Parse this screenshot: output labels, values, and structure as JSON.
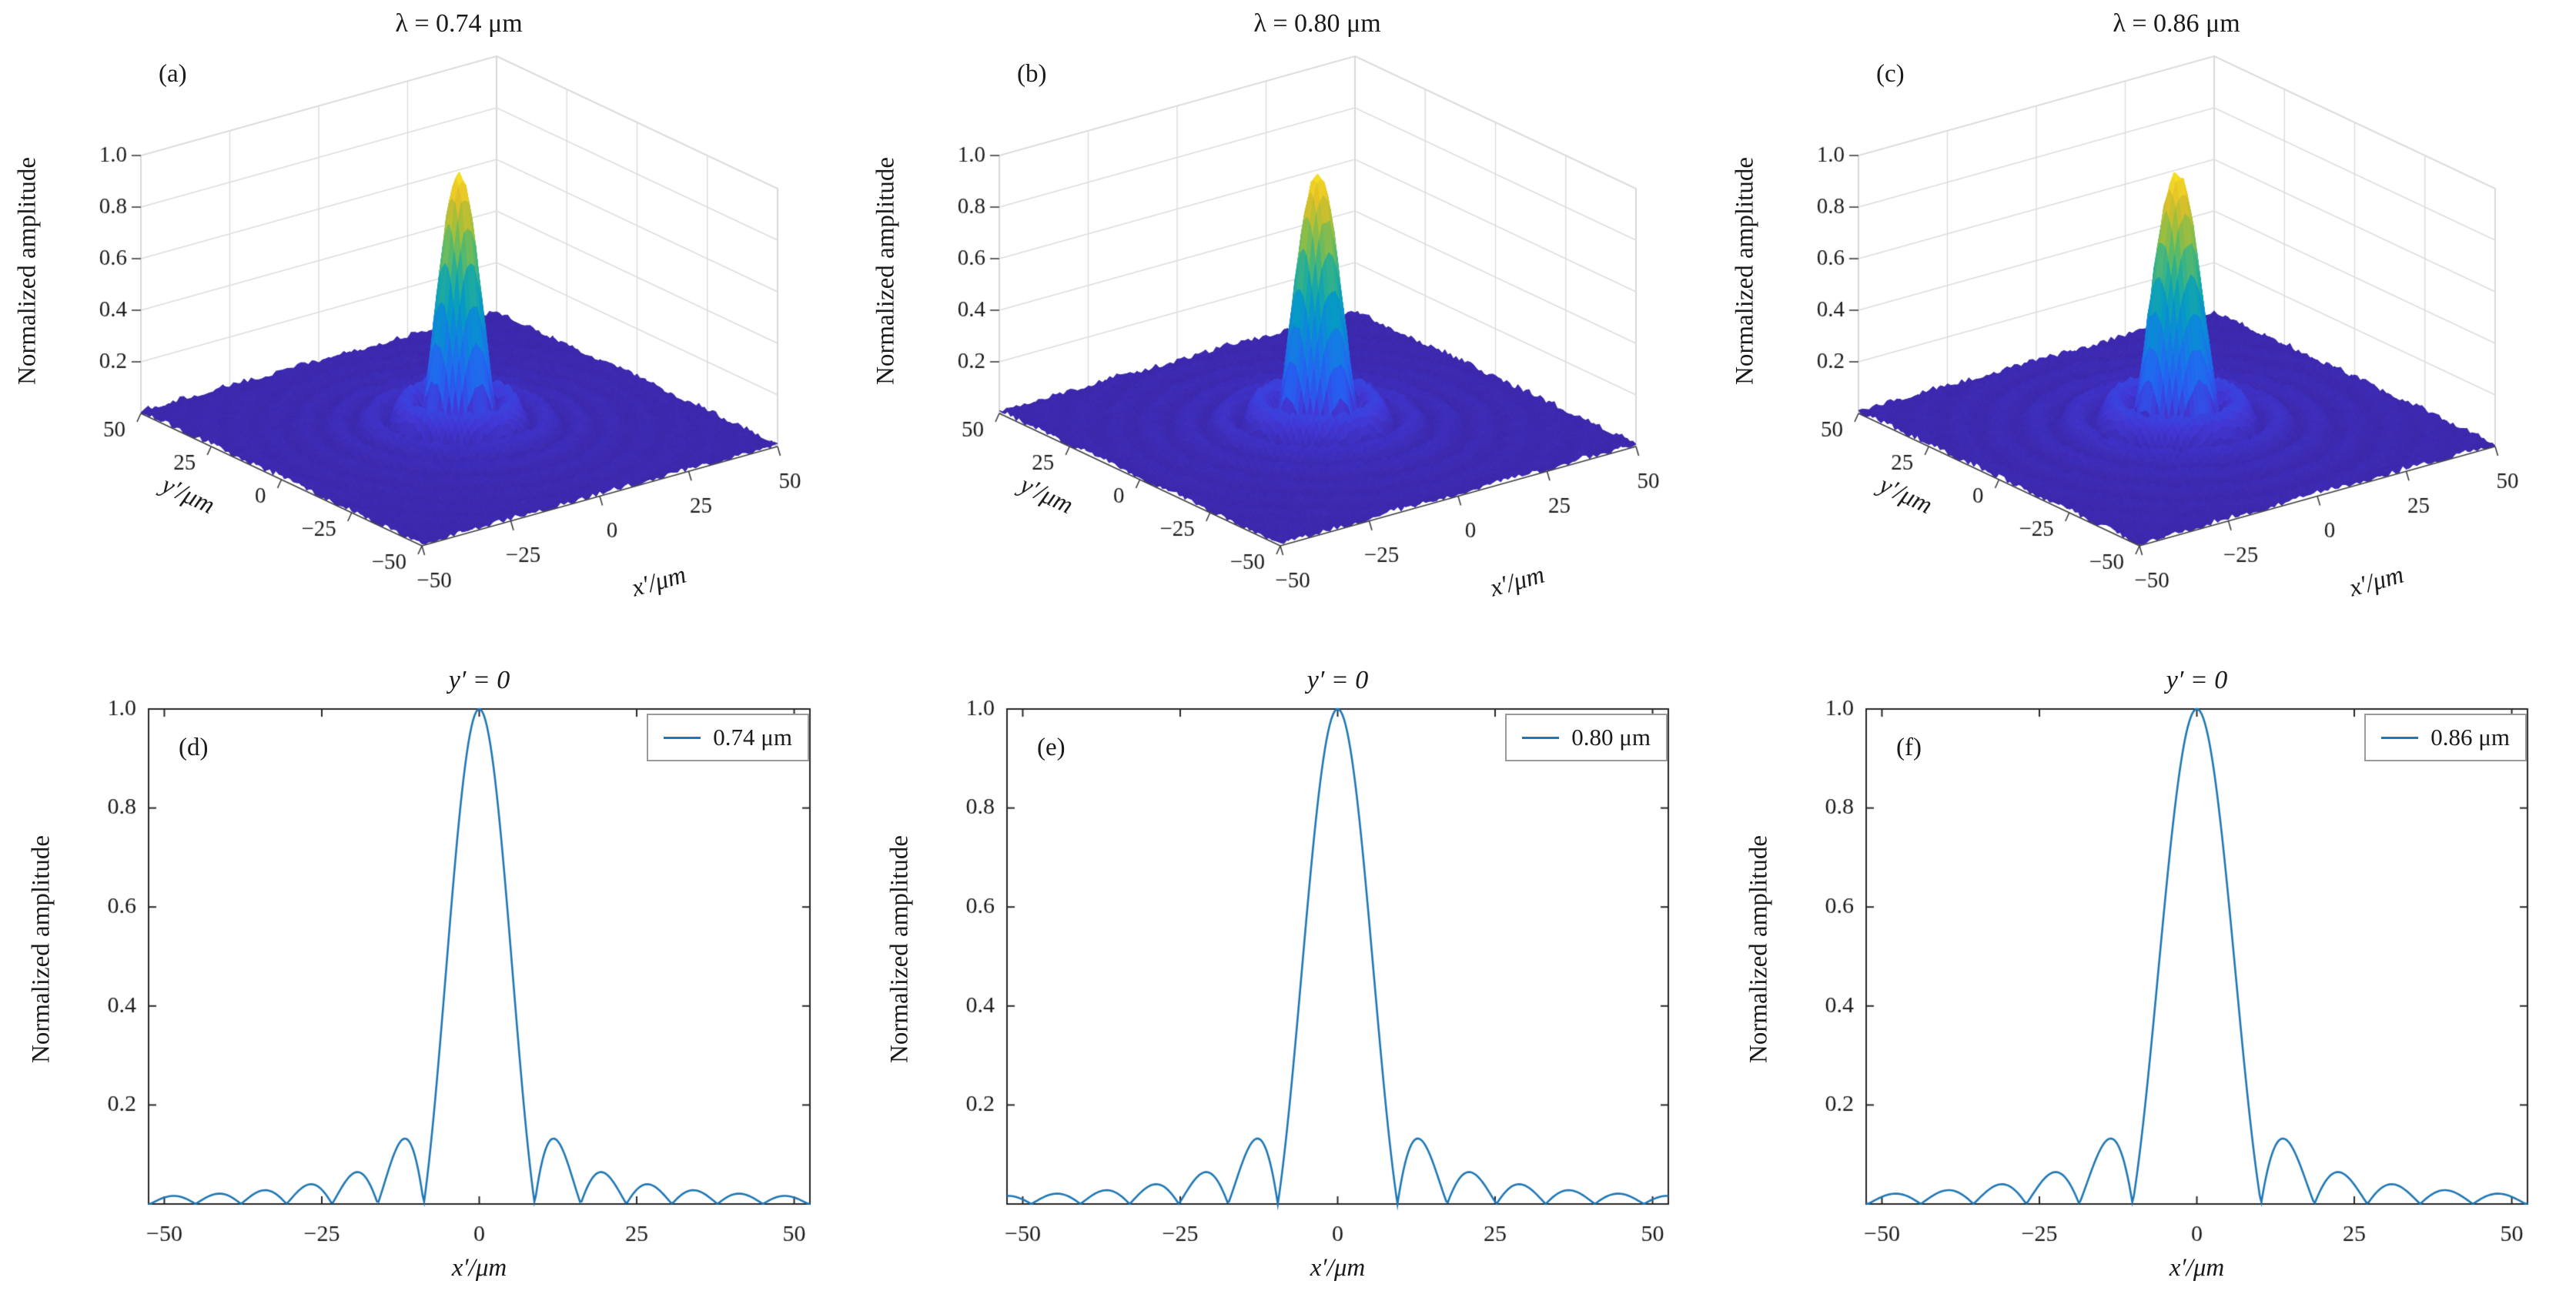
{
  "colors": {
    "line": "#1f77b4",
    "axis": "#262626",
    "grid": "#dcdcdc",
    "pane_edge": "#c9c9c9",
    "tick_text": "#1a1a1a",
    "legend_border": "#9a9a9a",
    "colormap": [
      "#3a26a8",
      "#4238d6",
      "#285cf0",
      "#1c71ec",
      "#0d88da",
      "#069cc2",
      "#22ad9b",
      "#5cba67",
      "#a3be3b",
      "#e4c027",
      "#f9e625"
    ]
  },
  "chart_data": [
    {
      "type": "surface",
      "panel_label": "(a)",
      "title": "λ = 0.74 μm",
      "wavelength_um": 0.74,
      "xlabel": "x′/μm",
      "ylabel": "y′/μm",
      "zlabel": "Normalized amplitude",
      "x_range": [
        -50,
        50
      ],
      "y_range": [
        -50,
        50
      ],
      "z_range": [
        0,
        1
      ],
      "x_ticks": [
        -50,
        -25,
        0,
        25,
        50
      ],
      "x_tick_labels": [
        "−50",
        "−25",
        "0",
        "25",
        "50"
      ],
      "y_ticks": [
        -50,
        -25,
        0,
        25,
        50
      ],
      "y_tick_labels": [
        "−50",
        "−25",
        "0",
        "25",
        "50"
      ],
      "z_ticks": [
        0.2,
        0.4,
        0.6,
        0.8,
        1.0
      ],
      "z_tick_labels": [
        "0.2",
        "0.4",
        "0.6",
        "0.8",
        "1.0"
      ],
      "function": "normalized Airy amplitude |2·J1(v)/v|, v = 3.8317·r/r1, r = √(x′²+y′²)",
      "first_zero_radius_um": 8.8,
      "peak": {
        "x": 0,
        "y": 0,
        "amplitude": 1.0
      },
      "ring_radii_um": [
        11.8,
        19.3,
        26.7,
        34.0,
        41.2,
        48.5
      ],
      "ring_amplitudes": [
        0.132,
        0.065,
        0.04,
        0.029,
        0.023,
        0.019
      ],
      "noise_amplitude": 0.012,
      "colormap_name": "parula (dark blue → cyan → green → yellow)"
    },
    {
      "type": "surface",
      "panel_label": "(b)",
      "title": "λ = 0.80 μm",
      "wavelength_um": 0.8,
      "xlabel": "x′/μm",
      "ylabel": "y′/μm",
      "zlabel": "Normalized amplitude",
      "x_range": [
        -50,
        50
      ],
      "y_range": [
        -50,
        50
      ],
      "z_range": [
        0,
        1
      ],
      "x_ticks": [
        -50,
        -25,
        0,
        25,
        50
      ],
      "x_tick_labels": [
        "−50",
        "−25",
        "0",
        "25",
        "50"
      ],
      "y_ticks": [
        -50,
        -25,
        0,
        25,
        50
      ],
      "y_tick_labels": [
        "−50",
        "−25",
        "0",
        "25",
        "50"
      ],
      "z_ticks": [
        0.2,
        0.4,
        0.6,
        0.8,
        1.0
      ],
      "z_tick_labels": [
        "0.2",
        "0.4",
        "0.6",
        "0.8",
        "1.0"
      ],
      "function": "normalized Airy amplitude |2·J1(v)/v|, v = 3.8317·r/r1, r = √(x′²+y′²)",
      "first_zero_radius_um": 9.5,
      "peak": {
        "x": 0,
        "y": 0,
        "amplitude": 1.0
      },
      "ring_radii_um": [
        12.7,
        20.9,
        28.8,
        36.7,
        44.5
      ],
      "ring_amplitudes": [
        0.132,
        0.065,
        0.04,
        0.029,
        0.023
      ],
      "noise_amplitude": 0.012,
      "colormap_name": "parula (dark blue → cyan → green → yellow)"
    },
    {
      "type": "surface",
      "panel_label": "(c)",
      "title": "λ = 0.86 μm",
      "wavelength_um": 0.86,
      "xlabel": "x′/μm",
      "ylabel": "y′/μm",
      "zlabel": "Normalized amplitude",
      "x_range": [
        -50,
        50
      ],
      "y_range": [
        -50,
        50
      ],
      "z_range": [
        0,
        1
      ],
      "x_ticks": [
        -50,
        -25,
        0,
        25,
        50
      ],
      "x_tick_labels": [
        "−50",
        "−25",
        "0",
        "25",
        "50"
      ],
      "y_ticks": [
        -50,
        -25,
        0,
        25,
        50
      ],
      "y_tick_labels": [
        "−50",
        "−25",
        "0",
        "25",
        "50"
      ],
      "z_ticks": [
        0.2,
        0.4,
        0.6,
        0.8,
        1.0
      ],
      "z_tick_labels": [
        "0.2",
        "0.4",
        "0.6",
        "0.8",
        "1.0"
      ],
      "function": "normalized Airy amplitude |2·J1(v)/v|, v = 3.8317·r/r1, r = √(x′²+y′²)",
      "first_zero_radius_um": 10.2,
      "peak": {
        "x": 0,
        "y": 0,
        "amplitude": 1.0
      },
      "ring_radii_um": [
        13.7,
        22.4,
        30.9,
        39.4,
        47.8
      ],
      "ring_amplitudes": [
        0.132,
        0.065,
        0.04,
        0.029,
        0.023
      ],
      "noise_amplitude": 0.012,
      "colormap_name": "parula (dark blue → cyan → green → yellow)"
    },
    {
      "type": "line",
      "panel_label": "(d)",
      "title": "y′ = 0",
      "xlabel": "x′/μm",
      "ylabel": "Normalized amplitude",
      "xlim": [
        -52.5,
        52.5
      ],
      "ylim": [
        0,
        1.0
      ],
      "x_ticks": [
        -50,
        -25,
        0,
        25,
        50
      ],
      "x_tick_labels": [
        "−50",
        "−25",
        "0",
        "25",
        "50"
      ],
      "y_ticks": [
        0.2,
        0.4,
        0.6,
        0.8,
        1.0
      ],
      "y_tick_labels": [
        "0.2",
        "0.4",
        "0.6",
        "0.8",
        "1.0"
      ],
      "legend": [
        {
          "label": "0.74 μm",
          "color": "#1f77b4"
        }
      ],
      "series": [
        {
          "name": "0.74 μm",
          "function": "|2·J1(v)/v|, v = 3.8317·x′/r1",
          "first_zero_um": 8.8,
          "peak": [
            0,
            1.0
          ],
          "zeros_um": [
            8.8,
            16.1,
            23.4,
            30.6,
            37.8,
            45.1
          ],
          "sidelobe_peaks": [
            [
              11.8,
              0.132
            ],
            [
              19.3,
              0.065
            ],
            [
              26.7,
              0.04
            ],
            [
              34.0,
              0.029
            ],
            [
              41.2,
              0.023
            ],
            [
              48.5,
              0.019
            ]
          ],
          "symmetry": "even about x′ = 0"
        }
      ]
    },
    {
      "type": "line",
      "panel_label": "(e)",
      "title": "y′ = 0",
      "xlabel": "x′/μm",
      "ylabel": "Normalized amplitude",
      "xlim": [
        -52.5,
        52.5
      ],
      "ylim": [
        0,
        1.0
      ],
      "x_ticks": [
        -50,
        -25,
        0,
        25,
        50
      ],
      "x_tick_labels": [
        "−50",
        "−25",
        "0",
        "25",
        "50"
      ],
      "y_ticks": [
        0.2,
        0.4,
        0.6,
        0.8,
        1.0
      ],
      "y_tick_labels": [
        "0.2",
        "0.4",
        "0.6",
        "0.8",
        "1.0"
      ],
      "legend": [
        {
          "label": "0.80 μm",
          "color": "#1f77b4"
        }
      ],
      "series": [
        {
          "name": "0.80 μm",
          "function": "|2·J1(v)/v|, v = 3.8317·x′/r1",
          "first_zero_um": 9.5,
          "peak": [
            0,
            1.0
          ],
          "zeros_um": [
            9.5,
            17.4,
            25.2,
            33.0,
            40.8,
            48.6
          ],
          "sidelobe_peaks": [
            [
              12.7,
              0.132
            ],
            [
              20.9,
              0.065
            ],
            [
              28.8,
              0.04
            ],
            [
              36.7,
              0.029
            ],
            [
              44.5,
              0.023
            ]
          ],
          "symmetry": "even about x′ = 0"
        }
      ]
    },
    {
      "type": "line",
      "panel_label": "(f)",
      "title": "y′ = 0",
      "xlabel": "x′/μm",
      "ylabel": "Normalized amplitude",
      "xlim": [
        -52.5,
        52.5
      ],
      "ylim": [
        0,
        1.0
      ],
      "x_ticks": [
        -50,
        -25,
        0,
        25,
        50
      ],
      "x_tick_labels": [
        "−50",
        "−25",
        "0",
        "25",
        "50"
      ],
      "y_ticks": [
        0.2,
        0.4,
        0.6,
        0.8,
        1.0
      ],
      "y_tick_labels": [
        "0.2",
        "0.4",
        "0.6",
        "0.8",
        "1.0"
      ],
      "legend": [
        {
          "label": "0.86 μm",
          "color": "#1f77b4"
        }
      ],
      "series": [
        {
          "name": "0.86 μm",
          "function": "|2·J1(v)/v|, v = 3.8317·x′/r1",
          "first_zero_um": 10.2,
          "peak": [
            0,
            1.0
          ],
          "zeros_um": [
            10.2,
            18.7,
            27.1,
            35.5,
            43.8
          ],
          "sidelobe_peaks": [
            [
              13.7,
              0.132
            ],
            [
              22.4,
              0.065
            ],
            [
              30.9,
              0.04
            ],
            [
              39.4,
              0.029
            ],
            [
              47.8,
              0.023
            ]
          ],
          "symmetry": "even about x′ = 0"
        }
      ]
    }
  ]
}
